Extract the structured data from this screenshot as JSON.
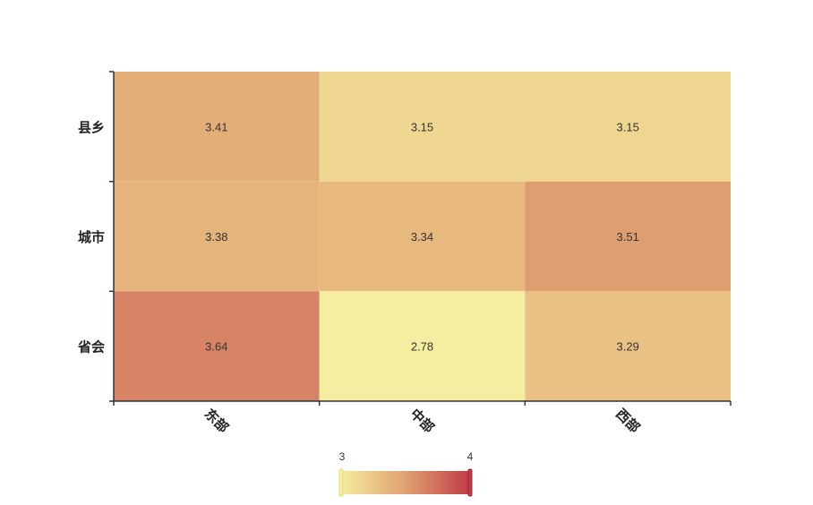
{
  "chart_data": {
    "type": "heatmap",
    "title": "",
    "xlabel": "",
    "ylabel": "",
    "x_categories": [
      "东部",
      "中部",
      "西部"
    ],
    "y_categories": [
      "县乡",
      "城市",
      "省会"
    ],
    "values": [
      [
        3.41,
        3.15,
        3.15
      ],
      [
        3.38,
        3.34,
        3.51
      ],
      [
        3.64,
        2.78,
        3.29
      ]
    ],
    "value_labels": [
      [
        "3.41",
        "3.15",
        "3.15"
      ],
      [
        "3.38",
        "3.34",
        "3.51"
      ],
      [
        "3.64",
        "2.78",
        "3.29"
      ]
    ],
    "visual_map": {
      "min": 3,
      "max": 4,
      "min_label": "3",
      "max_label": "4",
      "colors": [
        "#f5eea0",
        "#e0a070",
        "#be3b47"
      ]
    },
    "grid": false,
    "legend": "bottom-center"
  }
}
